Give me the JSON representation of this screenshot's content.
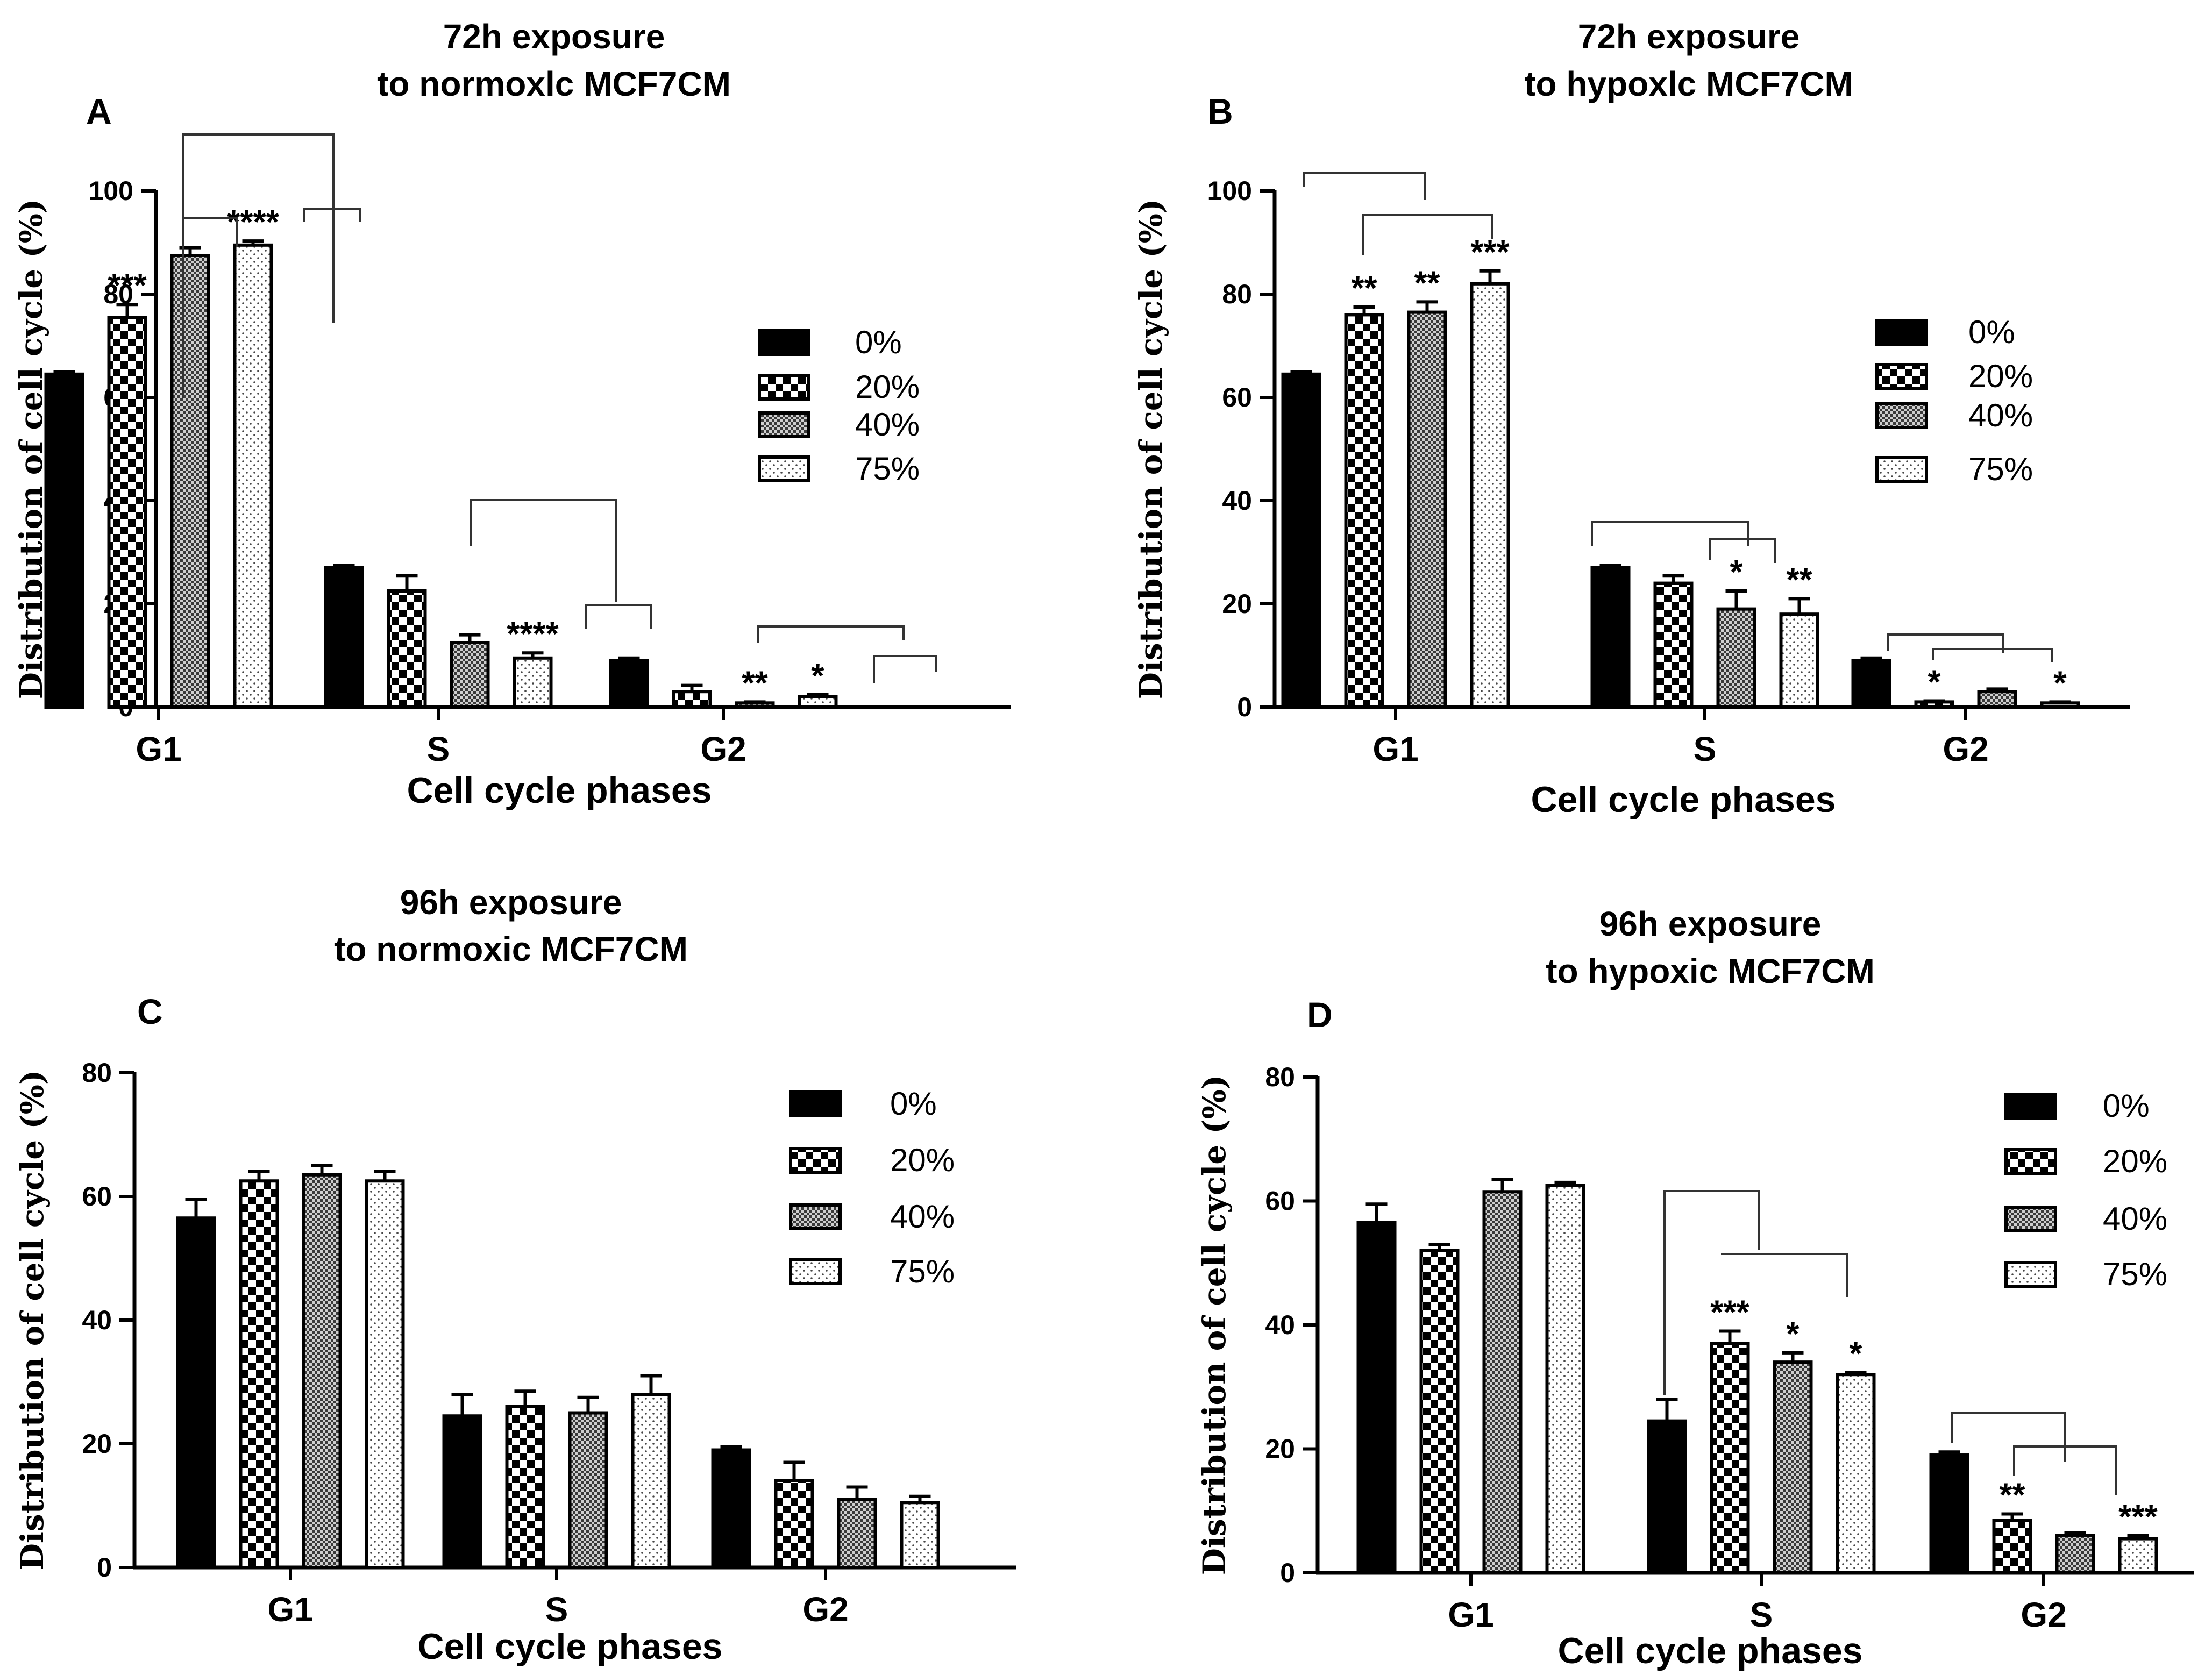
{
  "colors": {
    "ink": "#000000",
    "background": "#ffffff"
  },
  "legend": [
    "0%",
    "20%",
    "40%",
    "75%"
  ],
  "chart_data": [
    {
      "panel": "A",
      "type": "bar",
      "title_lines": [
        "72h exposure",
        "to normoxlc MCF7CM"
      ],
      "xlabel": "Cell cycle phases",
      "ylabel": "Distribution of cell cycle (%)",
      "ylim": [
        0,
        100
      ],
      "yticks": [
        "0",
        "20",
        "40",
        "60",
        "80",
        "100"
      ],
      "categories": [
        "G1",
        "S",
        "G2"
      ],
      "series": [
        {
          "name": "0%",
          "pattern": "solid",
          "values": [
            64.5,
            27,
            9
          ],
          "errors": [
            0.5,
            0.5,
            0.5
          ]
        },
        {
          "name": "20%",
          "pattern": "checker",
          "values": [
            75.5,
            22.5,
            3
          ],
          "errors": [
            2.5,
            3,
            1.2
          ]
        },
        {
          "name": "40%",
          "pattern": "dense",
          "values": [
            87.5,
            12.5,
            0.8
          ],
          "errors": [
            1.5,
            1.5,
            0.2
          ]
        },
        {
          "name": "75%",
          "pattern": "dots",
          "values": [
            89.5,
            9.5,
            2
          ],
          "errors": [
            0.8,
            1,
            0.4
          ]
        }
      ],
      "annotations": [
        {
          "category": 0,
          "series": 1,
          "text": "***"
        },
        {
          "category": 0,
          "series": 3,
          "text": "****"
        },
        {
          "category": 1,
          "series": 3,
          "text": "****"
        },
        {
          "category": 2,
          "series": 2,
          "text": "**"
        },
        {
          "category": 2,
          "series": 3,
          "text": "*"
        }
      ]
    },
    {
      "panel": "B",
      "type": "bar",
      "title_lines": [
        "72h exposure",
        "to hypoxlc MCF7CM"
      ],
      "xlabel": "Cell cycle phases",
      "ylabel": "Distribution of cell cycle (%)",
      "ylim": [
        0,
        100
      ],
      "yticks": [
        "0",
        "20",
        "40",
        "60",
        "80",
        "100"
      ],
      "categories": [
        "G1",
        "S",
        "G2"
      ],
      "series": [
        {
          "name": "0%",
          "pattern": "solid",
          "values": [
            64.5,
            27,
            9
          ],
          "errors": [
            0.5,
            0.5,
            0.5
          ]
        },
        {
          "name": "20%",
          "pattern": "checker",
          "values": [
            76,
            24,
            1
          ],
          "errors": [
            1.5,
            1.5,
            0.2
          ]
        },
        {
          "name": "40%",
          "pattern": "dense",
          "values": [
            76.5,
            19,
            3
          ],
          "errors": [
            2,
            3.5,
            0.5
          ]
        },
        {
          "name": "75%",
          "pattern": "dots",
          "values": [
            82,
            18,
            0.8
          ],
          "errors": [
            2.5,
            3,
            0.2
          ]
        }
      ],
      "annotations": [
        {
          "category": 0,
          "series": 1,
          "text": "**"
        },
        {
          "category": 0,
          "series": 2,
          "text": "**"
        },
        {
          "category": 0,
          "series": 3,
          "text": "***"
        },
        {
          "category": 1,
          "series": 2,
          "text": "*"
        },
        {
          "category": 1,
          "series": 3,
          "text": "**"
        },
        {
          "category": 2,
          "series": 1,
          "text": "*"
        },
        {
          "category": 2,
          "series": 3,
          "text": "*"
        }
      ]
    },
    {
      "panel": "C",
      "type": "bar",
      "title_lines": [
        "96h exposure",
        "to normoxic MCF7CM"
      ],
      "xlabel": "Cell cycle phases",
      "ylabel": "Distribution of cell cycle (%)",
      "ylim": [
        0,
        80
      ],
      "yticks": [
        "0",
        "20",
        "40",
        "60",
        "80"
      ],
      "categories": [
        "G1",
        "S",
        "G2"
      ],
      "series": [
        {
          "name": "0%",
          "pattern": "solid",
          "values": [
            56.5,
            24.5,
            19
          ],
          "errors": [
            3,
            3.5,
            0.5
          ]
        },
        {
          "name": "20%",
          "pattern": "checker",
          "values": [
            62.5,
            26,
            14
          ],
          "errors": [
            1.5,
            2.5,
            3
          ]
        },
        {
          "name": "40%",
          "pattern": "dense",
          "values": [
            63.5,
            25,
            11
          ],
          "errors": [
            1.5,
            2.5,
            2
          ]
        },
        {
          "name": "75%",
          "pattern": "dots",
          "values": [
            62.5,
            28,
            10.5
          ],
          "errors": [
            1.5,
            3,
            1
          ]
        }
      ],
      "annotations": []
    },
    {
      "panel": "D",
      "type": "bar",
      "title_lines": [
        "96h exposure",
        "to hypoxic MCF7CM"
      ],
      "xlabel": "Cell cycle phases",
      "ylabel": "Distribution of cell cycle (%)",
      "ylim": [
        0,
        80
      ],
      "yticks": [
        "0",
        "20",
        "40",
        "60",
        "80"
      ],
      "categories": [
        "G1",
        "S",
        "G2"
      ],
      "series": [
        {
          "name": "0%",
          "pattern": "solid",
          "values": [
            56.5,
            24.5,
            19
          ],
          "errors": [
            3,
            3.5,
            0.5
          ]
        },
        {
          "name": "20%",
          "pattern": "checker",
          "values": [
            52,
            37,
            8.5
          ],
          "errors": [
            1,
            2,
            1
          ]
        },
        {
          "name": "40%",
          "pattern": "dense",
          "values": [
            61.5,
            34,
            6
          ],
          "errors": [
            2,
            1.5,
            0.5
          ]
        },
        {
          "name": "75%",
          "pattern": "dots",
          "values": [
            62.5,
            32,
            5.5
          ],
          "errors": [
            0.5,
            0.3,
            0.5
          ]
        }
      ],
      "annotations": [
        {
          "category": 1,
          "series": 1,
          "text": "***"
        },
        {
          "category": 1,
          "series": 2,
          "text": "*"
        },
        {
          "category": 1,
          "series": 3,
          "text": "*"
        },
        {
          "category": 2,
          "series": 1,
          "text": "**"
        },
        {
          "category": 2,
          "series": 3,
          "text": "***"
        }
      ]
    }
  ]
}
